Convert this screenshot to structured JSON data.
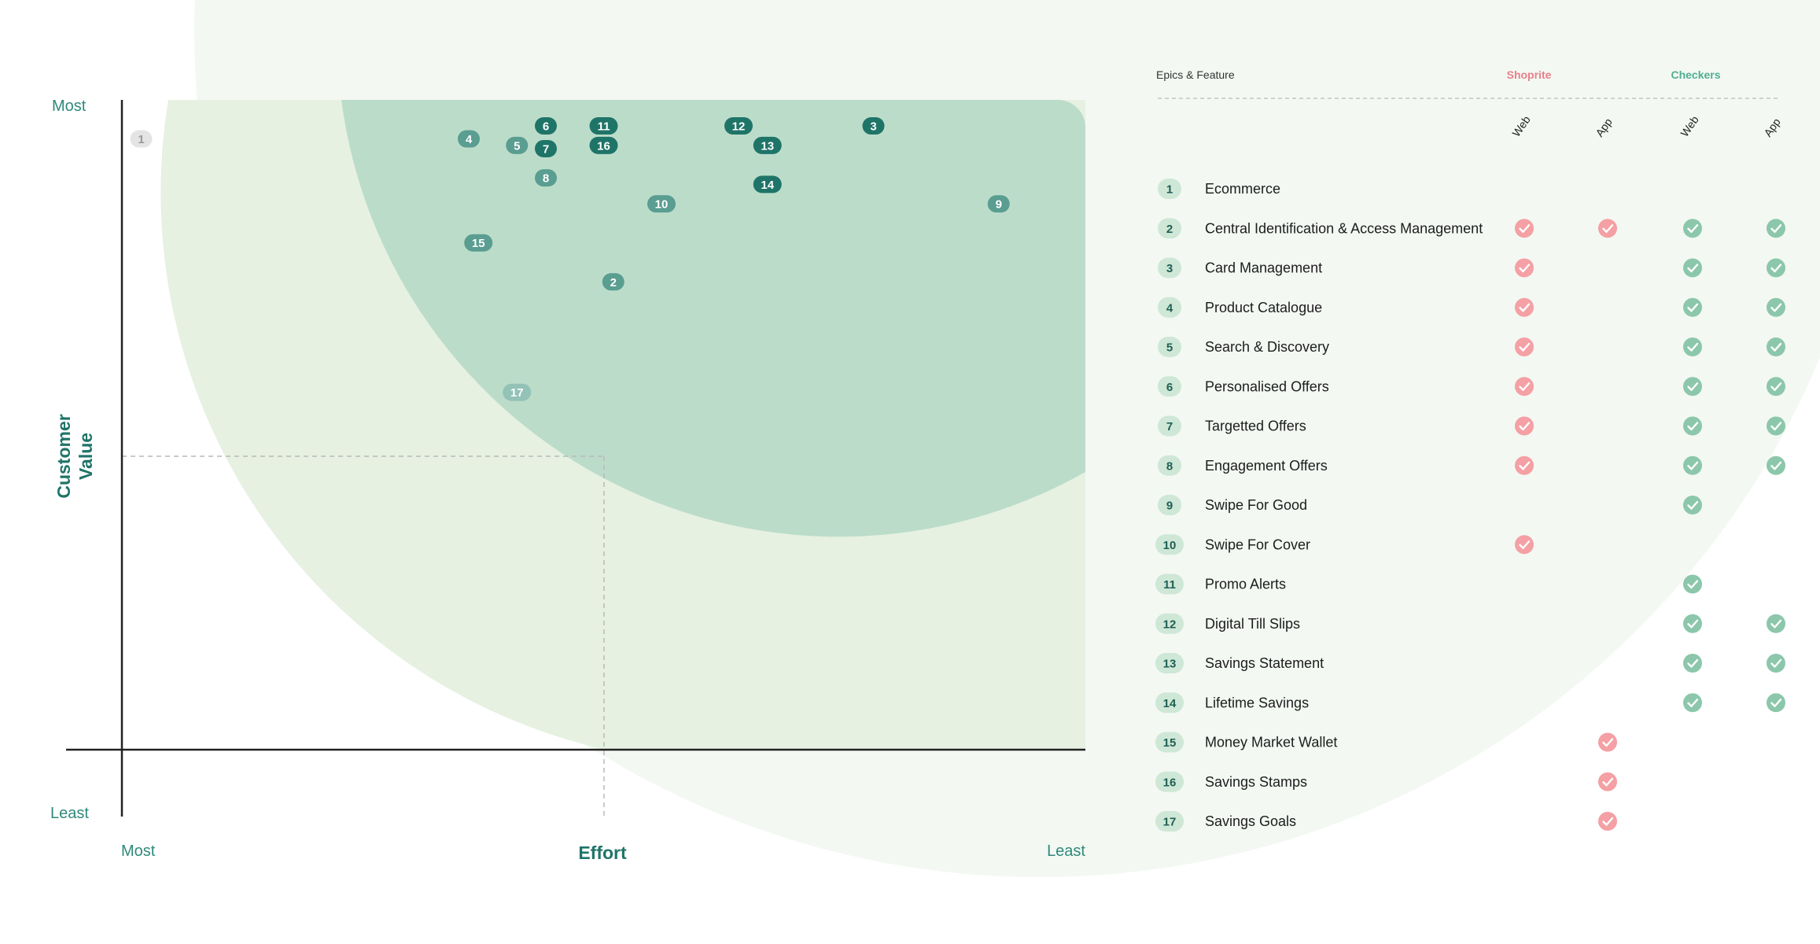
{
  "chart_data": {
    "type": "scatter",
    "title": "",
    "xlabel": "Effort",
    "ylabel_lines": [
      "Customer",
      "Value"
    ],
    "x_range_labels": {
      "start": "Most",
      "end": "Least"
    },
    "y_range_labels": {
      "top": "Most",
      "bottom": "Least"
    },
    "xlim": [
      0,
      10
    ],
    "ylim": [
      0,
      10
    ],
    "points": [
      {
        "label": "1",
        "x": 0.2,
        "y": 9.4,
        "style": "muted"
      },
      {
        "label": "2",
        "x": 5.1,
        "y": 7.2,
        "style": "light"
      },
      {
        "label": "3",
        "x": 7.8,
        "y": 9.6,
        "style": "dark"
      },
      {
        "label": "4",
        "x": 3.6,
        "y": 9.4,
        "style": "light"
      },
      {
        "label": "5",
        "x": 4.1,
        "y": 9.3,
        "style": "light"
      },
      {
        "label": "6",
        "x": 4.4,
        "y": 9.6,
        "style": "dark"
      },
      {
        "label": "7",
        "x": 4.4,
        "y": 9.25,
        "style": "dark"
      },
      {
        "label": "8",
        "x": 4.4,
        "y": 8.8,
        "style": "light"
      },
      {
        "label": "9",
        "x": 9.1,
        "y": 8.4,
        "style": "light"
      },
      {
        "label": "10",
        "x": 5.6,
        "y": 8.4,
        "style": "light"
      },
      {
        "label": "11",
        "x": 5.0,
        "y": 9.6,
        "style": "dark"
      },
      {
        "label": "12",
        "x": 6.4,
        "y": 9.6,
        "style": "dark"
      },
      {
        "label": "13",
        "x": 6.7,
        "y": 9.3,
        "style": "dark"
      },
      {
        "label": "14",
        "x": 6.7,
        "y": 8.7,
        "style": "dark"
      },
      {
        "label": "15",
        "x": 3.7,
        "y": 7.8,
        "style": "light"
      },
      {
        "label": "16",
        "x": 5.0,
        "y": 9.3,
        "style": "dark"
      },
      {
        "label": "17",
        "x": 4.1,
        "y": 5.5,
        "style": "pale"
      }
    ],
    "colors": {
      "dark_badge": "#1f7468",
      "light_badge": "#5a9d91",
      "pale_badge": "#93c2b6",
      "muted_badge": "#e4e4e4",
      "axis_label": "#2f8a7b",
      "axis_line": "#222222",
      "bg_outer": "#f2f7f2",
      "bg_light": "#e6f1e1",
      "bg_mid": "#bcdcca"
    }
  },
  "table": {
    "header_label": "Epics & Feature",
    "brands": [
      {
        "name": "Shoprite",
        "color": "#ea7f88"
      },
      {
        "name": "Checkers",
        "color": "#4fae91"
      }
    ],
    "platforms": [
      "Web",
      "App",
      "Web",
      "App"
    ],
    "rows": [
      {
        "num": "1",
        "name": "Ecommerce",
        "marks": [
          false,
          false,
          false,
          false
        ]
      },
      {
        "num": "2",
        "name": "Central Identification & Access Management",
        "marks": [
          true,
          true,
          true,
          true
        ]
      },
      {
        "num": "3",
        "name": "Card Management",
        "marks": [
          true,
          false,
          true,
          true
        ]
      },
      {
        "num": "4",
        "name": "Product Catalogue",
        "marks": [
          true,
          false,
          true,
          true
        ]
      },
      {
        "num": "5",
        "name": "Search & Discovery",
        "marks": [
          true,
          false,
          true,
          true
        ]
      },
      {
        "num": "6",
        "name": "Personalised Offers",
        "marks": [
          true,
          false,
          true,
          true
        ]
      },
      {
        "num": "7",
        "name": "Targetted Offers",
        "marks": [
          true,
          false,
          true,
          true
        ]
      },
      {
        "num": "8",
        "name": "Engagement Offers",
        "marks": [
          true,
          false,
          true,
          true
        ]
      },
      {
        "num": "9",
        "name": "Swipe For Good",
        "marks": [
          false,
          false,
          true,
          false
        ]
      },
      {
        "num": "10",
        "name": "Swipe For Cover",
        "marks": [
          true,
          false,
          false,
          false
        ]
      },
      {
        "num": "11",
        "name": "Promo Alerts",
        "marks": [
          false,
          false,
          true,
          false
        ]
      },
      {
        "num": "12",
        "name": "Digital Till Slips",
        "marks": [
          false,
          false,
          true,
          true
        ]
      },
      {
        "num": "13",
        "name": "Savings Statement",
        "marks": [
          false,
          false,
          true,
          true
        ]
      },
      {
        "num": "14",
        "name": "Lifetime Savings",
        "marks": [
          false,
          false,
          true,
          true
        ]
      },
      {
        "num": "15",
        "name": "Money Market Wallet",
        "marks": [
          false,
          true,
          false,
          false
        ]
      },
      {
        "num": "16",
        "name": "Savings Stamps",
        "marks": [
          false,
          true,
          false,
          false
        ]
      },
      {
        "num": "17",
        "name": "Savings Goals",
        "marks": [
          false,
          true,
          false,
          false
        ]
      }
    ],
    "colors": {
      "num_badge_bg": "#cfe7d6",
      "num_badge_text": "#1f5f55",
      "row_text": "#1c1c1c",
      "shoprite_check": "#f4a0a4",
      "checkers_check": "#8cc7ab"
    }
  }
}
